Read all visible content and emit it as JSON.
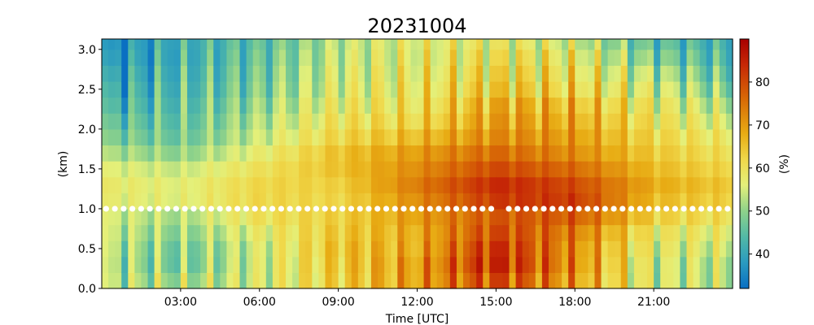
{
  "chart_data": {
    "type": "heatmap",
    "title": "20231004",
    "xlabel": "Time [UTC]",
    "ylabel": "(km)",
    "colorbar_label": "(%)",
    "x_range_hours": [
      0,
      24
    ],
    "x_ticks": [
      3,
      6,
      9,
      12,
      15,
      18,
      21
    ],
    "x_tick_labels": [
      "03:00",
      "06:00",
      "09:00",
      "12:00",
      "15:00",
      "18:00",
      "21:00"
    ],
    "ylim": [
      0.0,
      3.13
    ],
    "y_ticks": [
      0.0,
      0.5,
      1.0,
      1.5,
      2.0,
      2.5,
      3.0
    ],
    "y_tick_labels": [
      "0.0",
      "0.5",
      "1.0",
      "1.5",
      "2.0",
      "2.5",
      "3.0"
    ],
    "colorbar_range": [
      32,
      90
    ],
    "colorbar_ticks": [
      40,
      50,
      60,
      70,
      80
    ],
    "colorbar_tick_labels": [
      "40",
      "50",
      "60",
      "70",
      "80"
    ],
    "colormap_stops": [
      {
        "value": 32,
        "color": "#0a6fc2"
      },
      {
        "value": 38,
        "color": "#2a9bc0"
      },
      {
        "value": 44,
        "color": "#52b9a6"
      },
      {
        "value": 50,
        "color": "#8ed28a"
      },
      {
        "value": 56,
        "color": "#e4f07a"
      },
      {
        "value": 62,
        "color": "#f0d84a"
      },
      {
        "value": 68,
        "color": "#e8ac14"
      },
      {
        "value": 76,
        "color": "#d86a06"
      },
      {
        "value": 84,
        "color": "#c62806"
      },
      {
        "value": 90,
        "color": "#a80000"
      }
    ],
    "height_levels_km": [
      0.0,
      0.2,
      0.4,
      0.6,
      0.8,
      1.0,
      1.2,
      1.4,
      1.6,
      1.8,
      2.0,
      2.2,
      2.4,
      2.6,
      2.8,
      3.0
    ],
    "time_hours": [
      0.0,
      3.0,
      6.0,
      9.0,
      12.0,
      15.0,
      18.0,
      21.0,
      24.0
    ],
    "profiles": [
      [
        52,
        52,
        53,
        54,
        55,
        57,
        58,
        56,
        52,
        48,
        45,
        42,
        40,
        38,
        36,
        35
      ],
      [
        52,
        48,
        48,
        50,
        52,
        56,
        56,
        54,
        50,
        47,
        46,
        45,
        44,
        43,
        42,
        42
      ],
      [
        55,
        55,
        55,
        57,
        60,
        62,
        62,
        60,
        57,
        54,
        52,
        50,
        48,
        47,
        46,
        45
      ],
      [
        63,
        64,
        65,
        64,
        63,
        62,
        63,
        65,
        65,
        62,
        60,
        58,
        56,
        55,
        54,
        53
      ],
      [
        70,
        70,
        68,
        68,
        70,
        72,
        74,
        72,
        70,
        66,
        62,
        60,
        59,
        58,
        57,
        57
      ],
      [
        80,
        84,
        83,
        80,
        78,
        82,
        84,
        80,
        76,
        72,
        70,
        68,
        64,
        62,
        60,
        58
      ],
      [
        70,
        72,
        72,
        74,
        78,
        82,
        80,
        76,
        72,
        70,
        68,
        66,
        62,
        60,
        58,
        55
      ],
      [
        55,
        55,
        57,
        59,
        63,
        66,
        68,
        66,
        64,
        62,
        60,
        58,
        55,
        52,
        48,
        45
      ],
      [
        53,
        53,
        55,
        57,
        60,
        63,
        64,
        62,
        60,
        58,
        55,
        52,
        48,
        45,
        43,
        42
      ]
    ],
    "markers": {
      "height_km": 1.0,
      "interval_hours": 0.333,
      "color": "#ffffff",
      "gap_hours": [
        15.0,
        15.33
      ]
    }
  }
}
